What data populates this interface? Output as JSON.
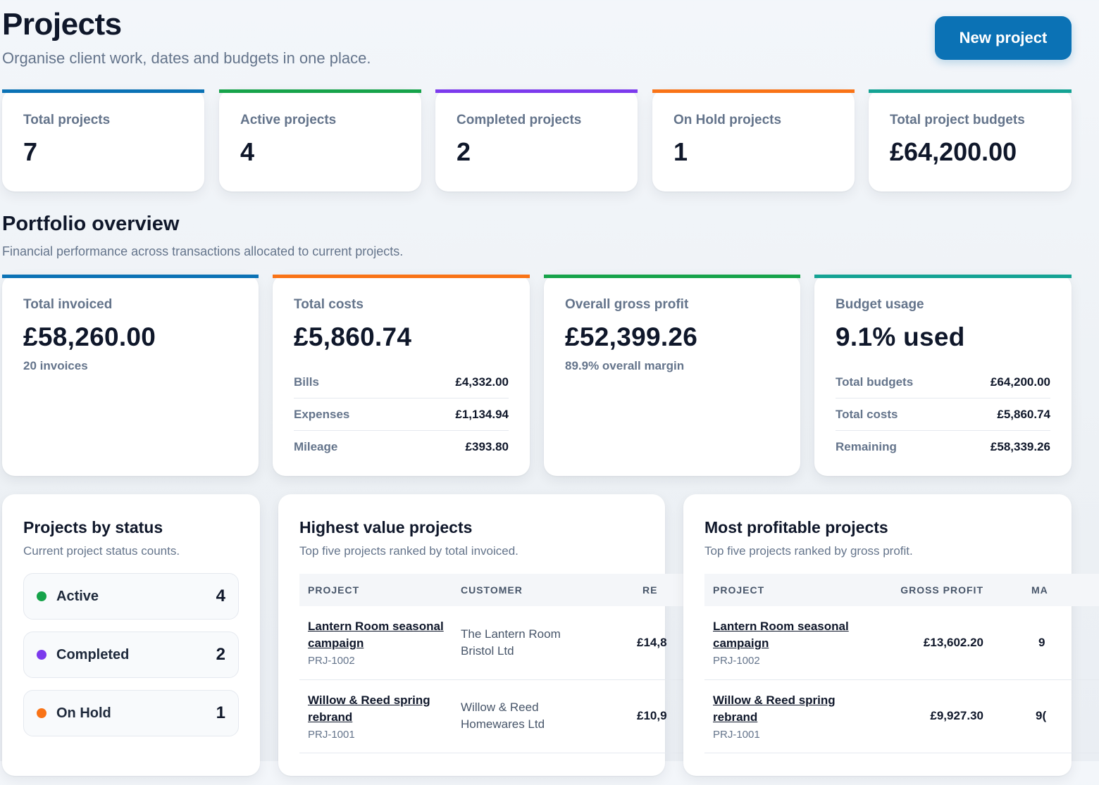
{
  "header": {
    "title": "Projects",
    "subtitle": "Organise client work, dates and budgets in one place.",
    "new_project_label": "New project"
  },
  "colors": {
    "primary": "#0b72b5",
    "green": "#16a34a",
    "purple": "#7c3aed",
    "orange": "#f97316",
    "teal": "#14a394"
  },
  "stats": [
    {
      "label": "Total projects",
      "value": "7"
    },
    {
      "label": "Active projects",
      "value": "4"
    },
    {
      "label": "Completed projects",
      "value": "2"
    },
    {
      "label": "On Hold projects",
      "value": "1"
    },
    {
      "label": "Total project budgets",
      "value": "£64,200.00"
    }
  ],
  "overview": {
    "title": "Portfolio overview",
    "subtitle": "Financial performance across transactions allocated to current projects.",
    "invoiced": {
      "label": "Total invoiced",
      "value": "£58,260.00",
      "note": "20 invoices"
    },
    "costs": {
      "label": "Total costs",
      "value": "£5,860.74",
      "rows": [
        {
          "k": "Bills",
          "v": "£4,332.00"
        },
        {
          "k": "Expenses",
          "v": "£1,134.94"
        },
        {
          "k": "Mileage",
          "v": "£393.80"
        }
      ]
    },
    "profit": {
      "label": "Overall gross profit",
      "value": "£52,399.26",
      "note": "89.9% overall margin"
    },
    "budget": {
      "label": "Budget usage",
      "value": "9.1% used",
      "rows": [
        {
          "k": "Total budgets",
          "v": "£64,200.00"
        },
        {
          "k": "Total costs",
          "v": "£5,860.74"
        },
        {
          "k": "Remaining",
          "v": "£58,339.26"
        }
      ]
    }
  },
  "status_panel": {
    "title": "Projects by status",
    "subtitle": "Current project status counts.",
    "items": [
      {
        "label": "Active",
        "count": "4"
      },
      {
        "label": "Completed",
        "count": "2"
      },
      {
        "label": "On Hold",
        "count": "1"
      }
    ]
  },
  "highest_value": {
    "title": "Highest value projects",
    "subtitle": "Top five projects ranked by total invoiced.",
    "columns": [
      "PROJECT",
      "CUSTOMER",
      "RE"
    ],
    "rows": [
      {
        "name": "Lantern Room seasonal campaign",
        "code": "PRJ-1002",
        "customer": "The Lantern Room Bristol Ltd",
        "value": "£14,8"
      },
      {
        "name": "Willow & Reed spring rebrand",
        "code": "PRJ-1001",
        "customer": "Willow & Reed Homewares Ltd",
        "value": "£10,9"
      }
    ]
  },
  "most_profitable": {
    "title": "Most profitable projects",
    "subtitle": "Top five projects ranked by gross profit.",
    "columns": [
      "PROJECT",
      "GROSS PROFIT",
      "MA"
    ],
    "rows": [
      {
        "name": "Lantern Room seasonal campaign",
        "code": "PRJ-1002",
        "profit": "£13,602.20",
        "margin": "9"
      },
      {
        "name": "Willow & Reed spring rebrand",
        "code": "PRJ-1001",
        "profit": "£9,927.30",
        "margin": "9("
      }
    ]
  }
}
